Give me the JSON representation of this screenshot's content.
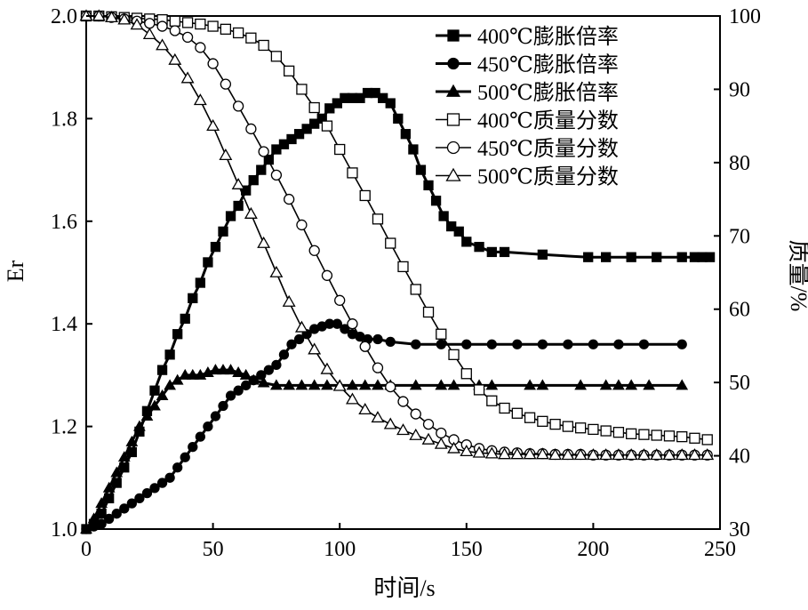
{
  "chart_data": {
    "type": "line",
    "title": "",
    "xlabel": "时间/s",
    "ylabel_left": "Er",
    "ylabel_right": "质量/%",
    "xlim": [
      0,
      250
    ],
    "ylim_left": [
      1.0,
      2.0
    ],
    "ylim_right": [
      30,
      100
    ],
    "xticks": [
      "0",
      "50",
      "100",
      "150",
      "200",
      "250"
    ],
    "yticks_left": [
      "1.0",
      "1.2",
      "1.4",
      "1.6",
      "1.8",
      "2.0"
    ],
    "yticks_right": [
      "30",
      "40",
      "50",
      "60",
      "70",
      "80",
      "90",
      "100"
    ],
    "grid": false,
    "legend_position": "top-right",
    "series": [
      {
        "name": "400℃膨胀倍率",
        "axis": "left",
        "marker": "square",
        "filled": true,
        "color": "#000000",
        "x": [
          0,
          3,
          6,
          9,
          12,
          15,
          18,
          21,
          24,
          27,
          30,
          33,
          36,
          39,
          42,
          45,
          48,
          51,
          54,
          57,
          60,
          63,
          66,
          69,
          72,
          75,
          78,
          81,
          84,
          87,
          90,
          93,
          96,
          99,
          102,
          105,
          108,
          111,
          114,
          117,
          120,
          123,
          126,
          129,
          132,
          135,
          138,
          141,
          144,
          147,
          150,
          155,
          160,
          165,
          180,
          198,
          205,
          215,
          225,
          235,
          240,
          243,
          246
        ],
        "y": [
          1.0,
          1.01,
          1.03,
          1.06,
          1.09,
          1.12,
          1.15,
          1.19,
          1.23,
          1.27,
          1.31,
          1.34,
          1.38,
          1.41,
          1.45,
          1.48,
          1.52,
          1.55,
          1.58,
          1.61,
          1.63,
          1.66,
          1.68,
          1.7,
          1.72,
          1.74,
          1.75,
          1.76,
          1.77,
          1.78,
          1.79,
          1.8,
          1.82,
          1.83,
          1.84,
          1.84,
          1.84,
          1.85,
          1.85,
          1.84,
          1.83,
          1.8,
          1.77,
          1.74,
          1.7,
          1.67,
          1.64,
          1.61,
          1.59,
          1.58,
          1.56,
          1.55,
          1.54,
          1.54,
          1.535,
          1.53,
          1.53,
          1.53,
          1.53,
          1.53,
          1.53,
          1.53,
          1.53
        ]
      },
      {
        "name": "450℃膨胀倍率",
        "axis": "left",
        "marker": "circle",
        "filled": true,
        "color": "#000000",
        "x": [
          0,
          3,
          6,
          9,
          12,
          15,
          18,
          21,
          24,
          27,
          30,
          33,
          36,
          39,
          42,
          45,
          48,
          51,
          54,
          57,
          60,
          63,
          66,
          69,
          72,
          75,
          78,
          81,
          84,
          87,
          90,
          93,
          96,
          99,
          102,
          105,
          108,
          111,
          115,
          120,
          130,
          140,
          150,
          160,
          170,
          180,
          190,
          200,
          210,
          220,
          235
        ],
        "y": [
          1.0,
          1.005,
          1.01,
          1.02,
          1.03,
          1.04,
          1.05,
          1.06,
          1.07,
          1.08,
          1.09,
          1.1,
          1.12,
          1.14,
          1.16,
          1.18,
          1.2,
          1.22,
          1.24,
          1.26,
          1.27,
          1.28,
          1.29,
          1.3,
          1.31,
          1.32,
          1.34,
          1.36,
          1.37,
          1.38,
          1.39,
          1.395,
          1.4,
          1.4,
          1.39,
          1.38,
          1.375,
          1.37,
          1.37,
          1.365,
          1.36,
          1.36,
          1.36,
          1.36,
          1.36,
          1.36,
          1.36,
          1.36,
          1.36,
          1.36,
          1.36
        ]
      },
      {
        "name": "500℃膨胀倍率",
        "axis": "left",
        "marker": "triangle",
        "filled": true,
        "color": "#000000",
        "x": [
          0,
          3,
          6,
          9,
          12,
          15,
          18,
          21,
          24,
          27,
          30,
          33,
          36,
          39,
          42,
          45,
          48,
          51,
          54,
          57,
          60,
          63,
          66,
          70,
          75,
          80,
          85,
          90,
          95,
          100,
          105,
          110,
          115,
          120,
          130,
          140,
          145,
          155,
          160,
          175,
          180,
          195,
          205,
          210,
          215,
          222,
          235
        ],
        "y": [
          1.0,
          1.02,
          1.05,
          1.08,
          1.11,
          1.14,
          1.17,
          1.2,
          1.22,
          1.24,
          1.26,
          1.28,
          1.29,
          1.3,
          1.3,
          1.3,
          1.305,
          1.31,
          1.31,
          1.31,
          1.305,
          1.3,
          1.29,
          1.285,
          1.28,
          1.28,
          1.28,
          1.28,
          1.28,
          1.28,
          1.28,
          1.28,
          1.28,
          1.28,
          1.28,
          1.28,
          1.28,
          1.28,
          1.28,
          1.28,
          1.28,
          1.28,
          1.28,
          1.28,
          1.28,
          1.28,
          1.28
        ]
      },
      {
        "name": "400℃质量分数",
        "axis": "right",
        "marker": "square",
        "filled": false,
        "color": "#000000",
        "x": [
          0,
          5,
          10,
          15,
          20,
          25,
          30,
          35,
          40,
          45,
          50,
          55,
          60,
          65,
          70,
          75,
          80,
          85,
          90,
          95,
          100,
          105,
          110,
          115,
          120,
          125,
          130,
          135,
          140,
          145,
          150,
          155,
          160,
          165,
          170,
          175,
          180,
          185,
          190,
          195,
          200,
          205,
          210,
          215,
          220,
          225,
          230,
          235,
          240,
          245
        ],
        "y": [
          100,
          100,
          99.9,
          99.8,
          99.7,
          99.6,
          99.5,
          99.3,
          99.1,
          98.9,
          98.6,
          98.2,
          97.7,
          97.0,
          96.0,
          94.5,
          92.5,
          90.0,
          87.5,
          85.0,
          81.8,
          78.6,
          75.5,
          72.3,
          69.0,
          65.8,
          62.7,
          59.6,
          56.6,
          53.8,
          51.2,
          49.0,
          47.5,
          46.5,
          45.8,
          45.2,
          44.7,
          44.3,
          44.0,
          43.8,
          43.6,
          43.4,
          43.2,
          43.0,
          42.9,
          42.8,
          42.7,
          42.6,
          42.4,
          42.2
        ]
      },
      {
        "name": "450℃质量分数",
        "axis": "right",
        "marker": "circle",
        "filled": false,
        "color": "#000000",
        "x": [
          0,
          5,
          10,
          15,
          20,
          25,
          30,
          35,
          40,
          45,
          50,
          55,
          60,
          65,
          70,
          75,
          80,
          85,
          90,
          95,
          100,
          105,
          110,
          115,
          120,
          125,
          130,
          135,
          140,
          145,
          150,
          155,
          160,
          165,
          170,
          175,
          180,
          185,
          190,
          195,
          200,
          205,
          210,
          215,
          220,
          225,
          230,
          235,
          240,
          245
        ],
        "y": [
          100,
          100,
          99.8,
          99.6,
          99.3,
          99.0,
          98.6,
          98.0,
          97.1,
          95.7,
          93.5,
          90.7,
          87.7,
          84.6,
          81.5,
          78.3,
          75.0,
          71.5,
          68.0,
          64.6,
          61.2,
          58.0,
          54.9,
          52.0,
          49.4,
          47.4,
          45.7,
          44.3,
          43.1,
          42.2,
          41.5,
          41.0,
          40.7,
          40.5,
          40.4,
          40.3,
          40.3,
          40.2,
          40.2,
          40.2,
          40.1,
          40.1,
          40.1,
          40.1,
          40.1,
          40.1,
          40.1,
          40.1,
          40.1,
          40.1
        ]
      },
      {
        "name": "500℃质量分数",
        "axis": "right",
        "marker": "triangle",
        "filled": false,
        "color": "#000000",
        "x": [
          0,
          5,
          10,
          15,
          20,
          25,
          30,
          35,
          40,
          45,
          50,
          55,
          60,
          65,
          70,
          75,
          80,
          85,
          90,
          95,
          100,
          105,
          110,
          115,
          120,
          125,
          130,
          135,
          140,
          145,
          150,
          155,
          160,
          165,
          170,
          175,
          180,
          185,
          190,
          195,
          200,
          205,
          210,
          215,
          220,
          225,
          230,
          235,
          240,
          245
        ],
        "y": [
          100,
          100,
          99.8,
          99.5,
          98.8,
          97.5,
          96.0,
          94.0,
          91.5,
          88.5,
          85.0,
          81.0,
          77.0,
          73.0,
          69.0,
          65.0,
          61.0,
          57.5,
          54.5,
          51.8,
          49.5,
          47.7,
          46.3,
          45.2,
          44.3,
          43.5,
          42.8,
          42.2,
          41.6,
          41.0,
          40.6,
          40.4,
          40.3,
          40.2,
          40.2,
          40.2,
          40.2,
          40.1,
          40.1,
          40.1,
          40.1,
          40.1,
          40.1,
          40.1,
          40.1,
          40.1,
          40.1,
          40.1,
          40.1,
          40.1
        ]
      }
    ]
  }
}
